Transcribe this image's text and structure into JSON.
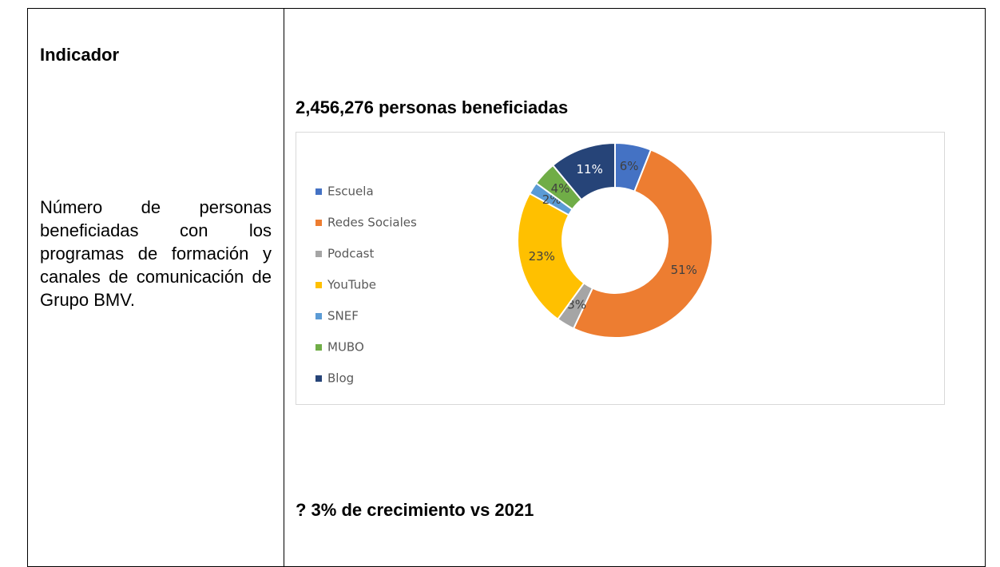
{
  "left": {
    "heading": "Indicador",
    "description": "Número de personas beneficiadas con los programas de formación y canales de comunicación de Grupo BMV."
  },
  "right": {
    "title": "2,456,276 personas beneficiadas",
    "growth": "? 3% de crecimiento vs 2021"
  },
  "chart_data": {
    "type": "donut",
    "categories": [
      "Escuela",
      "Redes Sociales",
      "Podcast",
      "YouTube",
      "SNEF",
      "MUBO",
      "Blog"
    ],
    "values": [
      6,
      51,
      3,
      23,
      2,
      4,
      11
    ],
    "value_labels": [
      "6%",
      "51%",
      "3%",
      "23%",
      "2%",
      "4%",
      "11%"
    ],
    "colors": [
      "#4472c4",
      "#ed7d31",
      "#a5a5a5",
      "#ffc000",
      "#5b9bd5",
      "#70ad47",
      "#264478"
    ]
  }
}
